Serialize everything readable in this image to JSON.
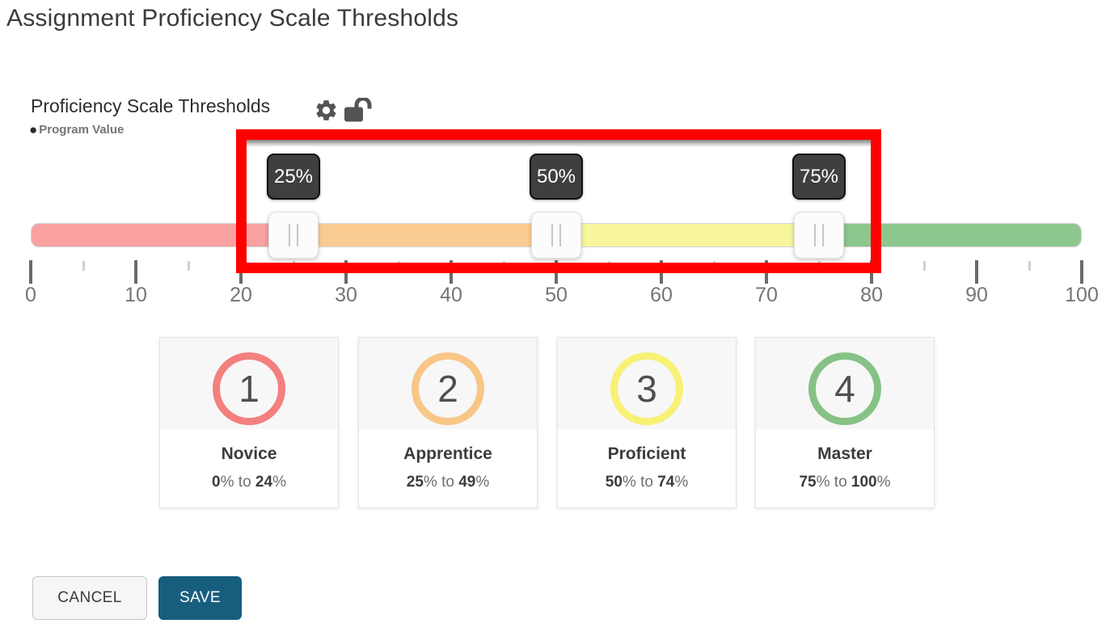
{
  "page": {
    "title": "Assignment Proficiency Scale Thresholds"
  },
  "panel": {
    "heading": "Proficiency Scale Thresholds",
    "legend": {
      "dot": "●",
      "label": "Program Value"
    }
  },
  "slider": {
    "min": 0,
    "max": 100,
    "segments": [
      {
        "name": "novice",
        "from": 0,
        "to": 25,
        "color": "#f8a1a0"
      },
      {
        "name": "apprentice",
        "from": 25,
        "to": 50,
        "color": "#fbcc92"
      },
      {
        "name": "proficient",
        "from": 50,
        "to": 75,
        "color": "#f7f69c"
      },
      {
        "name": "master",
        "from": 75,
        "to": 100,
        "color": "#8ec78e"
      }
    ],
    "handles": [
      {
        "value": 25,
        "label": "25%"
      },
      {
        "value": 50,
        "label": "50%"
      },
      {
        "value": 75,
        "label": "75%"
      }
    ]
  },
  "axis": {
    "min": 0,
    "max": 100,
    "major_step": 10,
    "minor_step": 5,
    "labels": [
      "0",
      "10",
      "20",
      "30",
      "40",
      "50",
      "60",
      "70",
      "80",
      "90",
      "100"
    ]
  },
  "annotation": {
    "color": "#fe0000"
  },
  "levels": [
    {
      "number": "1",
      "name": "Novice",
      "range_low": "0",
      "range_high": "24",
      "ring_color": "#f37f7e"
    },
    {
      "number": "2",
      "name": "Apprentice",
      "range_low": "25",
      "range_high": "49",
      "ring_color": "#f8c687"
    },
    {
      "number": "3",
      "name": "Proficient",
      "range_low": "50",
      "range_high": "74",
      "ring_color": "#f7f176"
    },
    {
      "number": "4",
      "name": "Master",
      "range_low": "75",
      "range_high": "100",
      "ring_color": "#86c286"
    }
  ],
  "range_text": {
    "pct": "%",
    "sep": " to "
  },
  "actions": {
    "cancel": "CANCEL",
    "save": "SAVE",
    "save_bg": "#175e7e"
  }
}
